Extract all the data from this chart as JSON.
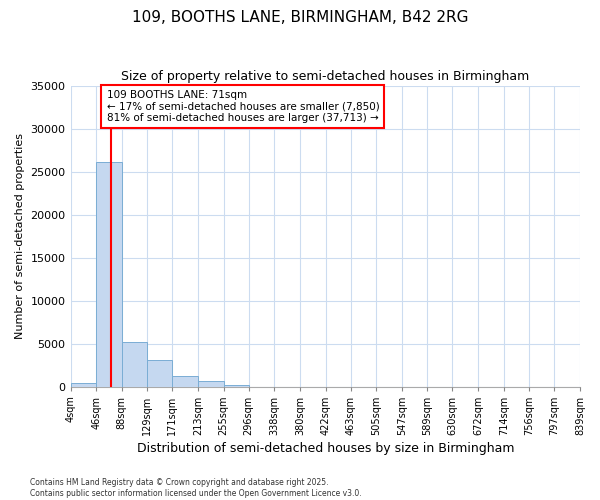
{
  "title": "109, BOOTHS LANE, BIRMINGHAM, B42 2RG",
  "subtitle": "Size of property relative to semi-detached houses in Birmingham",
  "xlabel": "Distribution of semi-detached houses by size in Birmingham",
  "ylabel": "Number of semi-detached properties",
  "bin_edges": [
    4,
    46,
    88,
    129,
    171,
    213,
    255,
    296,
    338,
    380,
    422,
    463,
    505,
    547,
    589,
    630,
    672,
    714,
    756,
    797,
    839
  ],
  "bar_heights": [
    400,
    26100,
    5200,
    3100,
    1200,
    600,
    200,
    0,
    0,
    0,
    0,
    0,
    0,
    0,
    0,
    0,
    0,
    0,
    0,
    0
  ],
  "bar_color": "#c5d8f0",
  "bar_edge_color": "#7aadd4",
  "property_size": 71,
  "property_label": "109 BOOTHS LANE: 71sqm",
  "smaller_pct": "17%",
  "smaller_count": "7,850",
  "larger_pct": "81%",
  "larger_count": "37,713",
  "vline_color": "red",
  "background_color": "#ffffff",
  "grid_color": "#ccdcf0",
  "ylim": [
    0,
    35000
  ],
  "yticks": [
    0,
    5000,
    10000,
    15000,
    20000,
    25000,
    30000,
    35000
  ],
  "footnote1": "Contains HM Land Registry data © Crown copyright and database right 2025.",
  "footnote2": "Contains public sector information licensed under the Open Government Licence v3.0."
}
